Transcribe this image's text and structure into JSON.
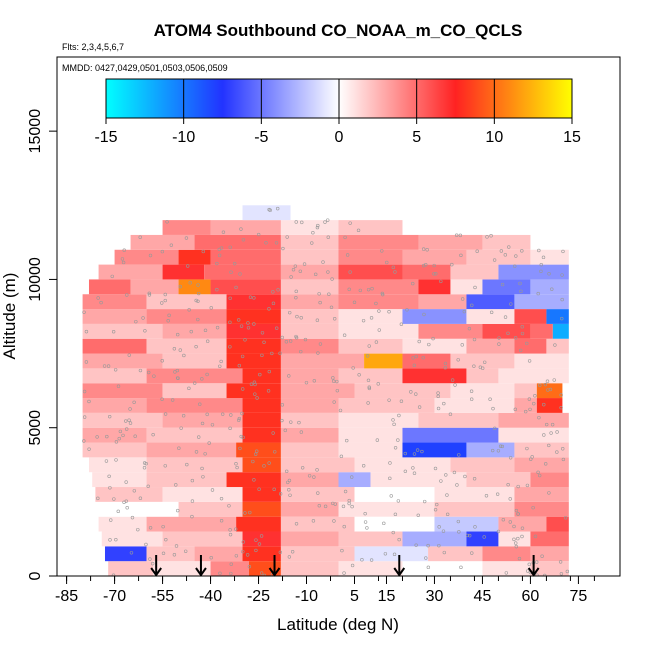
{
  "chart_data": {
    "type": "heatmap",
    "title": "ATOM4 Southbound CO_NOAA_m_CO_QCLS",
    "flights_label": "Flts: 2,3,4,5,6,7",
    "dates_label": "MMDD: 0427,0429,0501,0503,0506,0509",
    "xlabel": "Latitude (deg N)",
    "ylabel": "Altitude (m)",
    "xlim": [
      -88,
      88
    ],
    "ylim": [
      0,
      17500
    ],
    "x_ticks": [
      -85,
      -70,
      -55,
      -40,
      -25,
      -10,
      5,
      15,
      30,
      45,
      60,
      75
    ],
    "y_ticks": [
      0,
      5000,
      10000,
      15000
    ],
    "colorbar": {
      "range": [
        -15,
        15
      ],
      "ticks": [
        -15,
        -10,
        -5,
        0,
        5,
        10,
        15
      ],
      "colors": [
        "#00ffff",
        "#2233ff",
        "#ffffff",
        "#ff2222",
        "#ffff00"
      ]
    },
    "arrow_latitudes": [
      -57,
      -43,
      -20,
      19,
      61
    ],
    "bands": [
      {
        "alt": [
          0,
          500
        ],
        "lat": [
          -72,
          72
        ],
        "segments": [
          [
            -72,
            -58,
            2
          ],
          [
            -58,
            -40,
            1
          ],
          [
            -40,
            -28,
            4
          ],
          [
            -28,
            -18,
            9
          ],
          [
            -18,
            0,
            2
          ],
          [
            0,
            20,
            1
          ],
          [
            20,
            45,
            0
          ],
          [
            45,
            60,
            1
          ],
          [
            60,
            72,
            2
          ]
        ]
      },
      {
        "alt": [
          500,
          1000
        ],
        "lat": [
          -73,
          72
        ],
        "segments": [
          [
            -73,
            -60,
            -7
          ],
          [
            -60,
            -45,
            2
          ],
          [
            -45,
            -30,
            3
          ],
          [
            -30,
            -18,
            8
          ],
          [
            -18,
            5,
            2
          ],
          [
            5,
            28,
            -1
          ],
          [
            28,
            45,
            2
          ],
          [
            45,
            60,
            4
          ],
          [
            60,
            72,
            3
          ]
        ]
      },
      {
        "alt": [
          1000,
          1500
        ],
        "lat": [
          -74,
          72
        ],
        "segments": [
          [
            -74,
            -55,
            1
          ],
          [
            -55,
            -30,
            2
          ],
          [
            -30,
            -18,
            7
          ],
          [
            -18,
            0,
            3
          ],
          [
            0,
            20,
            2
          ],
          [
            20,
            40,
            -3
          ],
          [
            40,
            50,
            -7
          ],
          [
            50,
            60,
            1
          ],
          [
            60,
            72,
            5
          ]
        ]
      },
      {
        "alt": [
          1500,
          2000
        ],
        "lat": [
          -75,
          72
        ],
        "segments": [
          [
            -75,
            -60,
            1
          ],
          [
            -60,
            -32,
            3
          ],
          [
            -32,
            -18,
            8
          ],
          [
            -18,
            5,
            2
          ],
          [
            5,
            30,
            0
          ],
          [
            30,
            50,
            -2
          ],
          [
            50,
            65,
            3
          ],
          [
            65,
            72,
            6
          ]
        ]
      },
      {
        "alt": [
          2000,
          2500
        ],
        "lat": [
          -75,
          72
        ],
        "segments": [
          [
            -75,
            -50,
            0
          ],
          [
            -50,
            -30,
            2
          ],
          [
            -30,
            -18,
            9
          ],
          [
            -18,
            0,
            3
          ],
          [
            0,
            30,
            1
          ],
          [
            30,
            55,
            2
          ],
          [
            55,
            72,
            4
          ]
        ]
      },
      {
        "alt": [
          2500,
          3000
        ],
        "lat": [
          -76,
          72
        ],
        "segments": [
          [
            -76,
            -55,
            2
          ],
          [
            -55,
            -30,
            1
          ],
          [
            -30,
            -18,
            8
          ],
          [
            -18,
            5,
            2
          ],
          [
            5,
            30,
            0
          ],
          [
            30,
            55,
            1
          ],
          [
            55,
            72,
            3
          ]
        ]
      },
      {
        "alt": [
          3000,
          3500
        ],
        "lat": [
          -77,
          72
        ],
        "segments": [
          [
            -77,
            -60,
            1
          ],
          [
            -60,
            -35,
            2
          ],
          [
            -35,
            -18,
            8
          ],
          [
            -18,
            0,
            3
          ],
          [
            0,
            10,
            -3
          ],
          [
            10,
            40,
            1
          ],
          [
            40,
            60,
            2
          ],
          [
            60,
            72,
            4
          ]
        ]
      },
      {
        "alt": [
          3500,
          4000
        ],
        "lat": [
          -78,
          72
        ],
        "segments": [
          [
            -78,
            -60,
            1
          ],
          [
            -60,
            -30,
            2
          ],
          [
            -30,
            -18,
            9
          ],
          [
            -18,
            5,
            2
          ],
          [
            5,
            35,
            1
          ],
          [
            35,
            55,
            2
          ],
          [
            55,
            72,
            3
          ]
        ]
      },
      {
        "alt": [
          4000,
          4500
        ],
        "lat": [
          -80,
          72
        ],
        "segments": [
          [
            -80,
            -60,
            2
          ],
          [
            -60,
            -32,
            3
          ],
          [
            -32,
            -18,
            9
          ],
          [
            -18,
            0,
            2
          ],
          [
            0,
            20,
            1
          ],
          [
            20,
            40,
            -8
          ],
          [
            40,
            55,
            -3
          ],
          [
            55,
            72,
            2
          ]
        ]
      },
      {
        "alt": [
          4500,
          5000
        ],
        "lat": [
          -80,
          72
        ],
        "segments": [
          [
            -80,
            -60,
            3
          ],
          [
            -60,
            -30,
            2
          ],
          [
            -30,
            -18,
            8
          ],
          [
            -18,
            0,
            3
          ],
          [
            0,
            20,
            1
          ],
          [
            20,
            50,
            -5
          ],
          [
            50,
            72,
            1
          ]
        ]
      },
      {
        "alt": [
          5000,
          5500
        ],
        "lat": [
          -80,
          72
        ],
        "segments": [
          [
            -80,
            -55,
            2
          ],
          [
            -55,
            -30,
            3
          ],
          [
            -30,
            -18,
            8
          ],
          [
            -18,
            0,
            2
          ],
          [
            0,
            25,
            1
          ],
          [
            25,
            50,
            2
          ],
          [
            50,
            72,
            3
          ]
        ]
      },
      {
        "alt": [
          5500,
          6000
        ],
        "lat": [
          -80,
          72
        ],
        "segments": [
          [
            -80,
            -60,
            3
          ],
          [
            -60,
            -30,
            4
          ],
          [
            -30,
            -18,
            8
          ],
          [
            -18,
            0,
            3
          ],
          [
            0,
            30,
            2
          ],
          [
            30,
            55,
            1
          ],
          [
            55,
            62,
            3
          ],
          [
            62,
            70,
            8
          ]
        ]
      },
      {
        "alt": [
          6000,
          6500
        ],
        "lat": [
          -80,
          72
        ],
        "segments": [
          [
            -80,
            -55,
            4
          ],
          [
            -55,
            -35,
            2
          ],
          [
            -35,
            -18,
            8
          ],
          [
            -18,
            5,
            3
          ],
          [
            5,
            35,
            2
          ],
          [
            35,
            55,
            1
          ],
          [
            55,
            62,
            2
          ],
          [
            62,
            70,
            10
          ]
        ]
      },
      {
        "alt": [
          6500,
          7000
        ],
        "lat": [
          -80,
          72
        ],
        "segments": [
          [
            -80,
            -60,
            2
          ],
          [
            -60,
            -30,
            4
          ],
          [
            -30,
            -18,
            8
          ],
          [
            -18,
            0,
            3
          ],
          [
            0,
            20,
            2
          ],
          [
            20,
            40,
            7
          ],
          [
            40,
            50,
            2
          ],
          [
            50,
            72,
            1
          ]
        ]
      },
      {
        "alt": [
          7000,
          7500
        ],
        "lat": [
          -80,
          72
        ],
        "segments": [
          [
            -80,
            -55,
            3
          ],
          [
            -55,
            -35,
            2
          ],
          [
            -35,
            -18,
            8
          ],
          [
            -18,
            8,
            3
          ],
          [
            8,
            20,
            12
          ],
          [
            20,
            35,
            5
          ],
          [
            35,
            55,
            2
          ],
          [
            55,
            72,
            1
          ]
        ]
      },
      {
        "alt": [
          7500,
          8000
        ],
        "lat": [
          -80,
          72
        ],
        "segments": [
          [
            -80,
            -60,
            5
          ],
          [
            -60,
            -35,
            2
          ],
          [
            -35,
            -18,
            8
          ],
          [
            -18,
            0,
            4
          ],
          [
            0,
            20,
            2
          ],
          [
            20,
            40,
            1
          ],
          [
            40,
            55,
            3
          ],
          [
            55,
            65,
            5
          ],
          [
            65,
            72,
            2
          ]
        ]
      },
      {
        "alt": [
          8000,
          8500
        ],
        "lat": [
          -80,
          72
        ],
        "segments": [
          [
            -80,
            -55,
            2
          ],
          [
            -55,
            -35,
            3
          ],
          [
            -35,
            -18,
            7
          ],
          [
            -18,
            0,
            2
          ],
          [
            0,
            25,
            1
          ],
          [
            25,
            45,
            4
          ],
          [
            45,
            60,
            6
          ],
          [
            60,
            67,
            5
          ],
          [
            67,
            72,
            -12
          ]
        ]
      },
      {
        "alt": [
          8500,
          9000
        ],
        "lat": [
          -80,
          72
        ],
        "segments": [
          [
            -80,
            -60,
            3
          ],
          [
            -60,
            -35,
            4
          ],
          [
            -35,
            -18,
            8
          ],
          [
            -18,
            0,
            2
          ],
          [
            0,
            20,
            1
          ],
          [
            20,
            40,
            -4
          ],
          [
            40,
            55,
            1
          ],
          [
            55,
            65,
            6
          ],
          [
            65,
            72,
            -10
          ]
        ]
      },
      {
        "alt": [
          9000,
          9500
        ],
        "lat": [
          -80,
          72
        ],
        "segments": [
          [
            -80,
            -60,
            4
          ],
          [
            -60,
            -35,
            2
          ],
          [
            -35,
            -18,
            7
          ],
          [
            -18,
            0,
            3
          ],
          [
            0,
            25,
            4
          ],
          [
            25,
            40,
            3
          ],
          [
            40,
            55,
            -6
          ],
          [
            55,
            72,
            -3
          ]
        ]
      },
      {
        "alt": [
          9500,
          10000
        ],
        "lat": [
          -78,
          72
        ],
        "segments": [
          [
            -78,
            -65,
            5
          ],
          [
            -65,
            -50,
            3
          ],
          [
            -50,
            -40,
            11
          ],
          [
            -40,
            -18,
            6
          ],
          [
            -18,
            0,
            2
          ],
          [
            0,
            25,
            4
          ],
          [
            25,
            35,
            7
          ],
          [
            35,
            45,
            1
          ],
          [
            45,
            60,
            -5
          ],
          [
            60,
            72,
            -3
          ]
        ]
      },
      {
        "alt": [
          10000,
          10500
        ],
        "lat": [
          -75,
          72
        ],
        "segments": [
          [
            -75,
            -55,
            3
          ],
          [
            -55,
            -42,
            7
          ],
          [
            -42,
            -18,
            5
          ],
          [
            -18,
            0,
            3
          ],
          [
            0,
            20,
            6
          ],
          [
            20,
            35,
            5
          ],
          [
            35,
            50,
            2
          ],
          [
            50,
            72,
            -4
          ]
        ]
      },
      {
        "alt": [
          10500,
          11000
        ],
        "lat": [
          -70,
          72
        ],
        "segments": [
          [
            -70,
            -50,
            4
          ],
          [
            -50,
            -40,
            8
          ],
          [
            -40,
            -18,
            5
          ],
          [
            -18,
            0,
            2
          ],
          [
            0,
            20,
            4
          ],
          [
            20,
            40,
            3
          ],
          [
            40,
            60,
            2
          ],
          [
            60,
            72,
            1
          ]
        ]
      },
      {
        "alt": [
          11000,
          11500
        ],
        "lat": [
          -65,
          60
        ],
        "segments": [
          [
            -65,
            -45,
            3
          ],
          [
            -45,
            -18,
            5
          ],
          [
            -18,
            0,
            2
          ],
          [
            0,
            25,
            4
          ],
          [
            25,
            45,
            3
          ],
          [
            45,
            60,
            2
          ]
        ]
      },
      {
        "alt": [
          11500,
          12000
        ],
        "lat": [
          -55,
          20
        ],
        "segments": [
          [
            -55,
            -40,
            4
          ],
          [
            -40,
            -18,
            3
          ],
          [
            -18,
            0,
            1
          ],
          [
            0,
            20,
            2
          ]
        ]
      },
      {
        "alt": [
          12000,
          12500
        ],
        "lat": [
          -30,
          -15
        ],
        "segments": [
          [
            -30,
            -15,
            -1
          ]
        ]
      }
    ]
  }
}
